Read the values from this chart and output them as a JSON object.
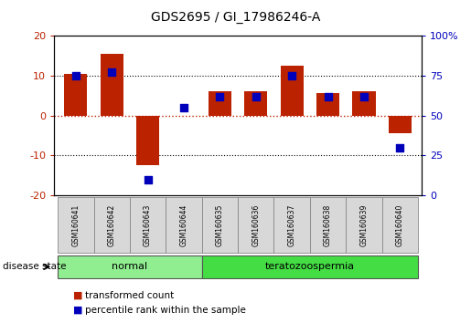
{
  "title": "GDS2695 / GI_17986246-A",
  "samples": [
    "GSM160641",
    "GSM160642",
    "GSM160643",
    "GSM160644",
    "GSM160635",
    "GSM160636",
    "GSM160637",
    "GSM160638",
    "GSM160639",
    "GSM160640"
  ],
  "transformed_count": [
    10.5,
    15.5,
    -12.5,
    0.0,
    6.0,
    6.0,
    12.5,
    5.5,
    6.0,
    -4.5
  ],
  "percentile_rank": [
    75,
    77,
    10,
    55,
    62,
    62,
    75,
    62,
    62,
    30
  ],
  "groups": [
    {
      "label": "normal",
      "start": 0,
      "end": 4,
      "color": "#90ee90"
    },
    {
      "label": "teratozoospermia",
      "start": 4,
      "end": 10,
      "color": "#44dd44"
    }
  ],
  "ylim_left": [
    -20,
    20
  ],
  "ylim_right": [
    0,
    100
  ],
  "yticks_left": [
    -20,
    -10,
    0,
    10,
    20
  ],
  "yticks_right": [
    0,
    25,
    50,
    75,
    100
  ],
  "yticklabels_right": [
    "0",
    "25",
    "50",
    "75",
    "100%"
  ],
  "yticklabels_left": [
    "-20",
    "-10",
    "0",
    "10",
    "20"
  ],
  "bar_color_red": "#bb2200",
  "bar_color_blue": "#0000bb",
  "background_color": "#ffffff",
  "disease_state_label": "disease state",
  "legend_items": [
    {
      "label": "transformed count",
      "color": "#bb2200"
    },
    {
      "label": "percentile rank within the sample",
      "color": "#0000bb"
    }
  ],
  "bar_width": 0.4,
  "blue_marker_size": 28
}
